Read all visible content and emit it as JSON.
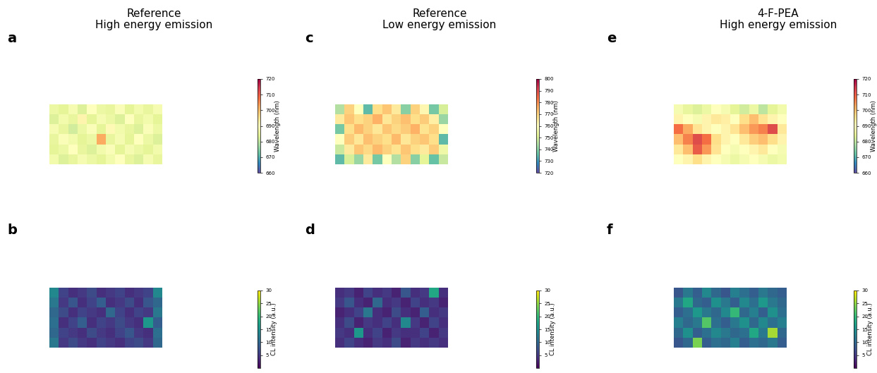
{
  "chart_data": [
    {
      "type": "heatmap",
      "label": "a",
      "title": "Reference\nHigh energy emission",
      "color": "Spectral_r",
      "colorbar_label": "Wavelength (nm)",
      "colorbar_range": [
        660,
        720
      ],
      "colorbar_ticks": [
        660,
        670,
        680,
        690,
        700,
        710,
        720
      ],
      "cells": [
        [
          686,
          684,
          688,
          683,
          690,
          686,
          685,
          689,
          684,
          687,
          685,
          688
        ],
        [
          683,
          687,
          685,
          692,
          684,
          688,
          686,
          683,
          690,
          685,
          687,
          684
        ],
        [
          688,
          685,
          682,
          686,
          689,
          684,
          691,
          687,
          685,
          683,
          689,
          686
        ],
        [
          685,
          689,
          687,
          684,
          686,
          702,
          685,
          688,
          684,
          690,
          686,
          683
        ],
        [
          684,
          686,
          690,
          685,
          683,
          687,
          689,
          684,
          688,
          686,
          684,
          687
        ],
        [
          687,
          683,
          685,
          688,
          686,
          684,
          687,
          690,
          685,
          683,
          688,
          685
        ]
      ]
    },
    {
      "type": "heatmap",
      "label": "c",
      "title": "Reference\nLow energy emission",
      "color": "Spectral_r",
      "colorbar_label": "Wavelength (nm)",
      "colorbar_range": [
        720,
        800
      ],
      "colorbar_ticks": [
        720,
        730,
        740,
        750,
        760,
        770,
        780,
        790,
        800
      ],
      "cells": [
        [
          745,
          770,
          760,
          735,
          768,
          772,
          765,
          740,
          770,
          762,
          738,
          750
        ],
        [
          765,
          772,
          768,
          770,
          775,
          766,
          770,
          773,
          768,
          771,
          764,
          742
        ],
        [
          738,
          768,
          774,
          770,
          766,
          772,
          769,
          771,
          775,
          767,
          770,
          760
        ],
        [
          760,
          771,
          766,
          773,
          770,
          768,
          774,
          766,
          770,
          772,
          768,
          735
        ],
        [
          748,
          765,
          772,
          769,
          774,
          770,
          767,
          772,
          768,
          765,
          771,
          755
        ],
        [
          735,
          750,
          742,
          765,
          738,
          760,
          745,
          770,
          740,
          752,
          736,
          748
        ]
      ]
    },
    {
      "type": "heatmap",
      "label": "e",
      "title": "4-F-PEA\nHigh energy emission",
      "color": "Spectral_r",
      "colorbar_label": "Wavelength (nm)",
      "colorbar_range": [
        660,
        720
      ],
      "colorbar_ticks": [
        660,
        670,
        680,
        690,
        700,
        710,
        720
      ],
      "cells": [
        [
          688,
          685,
          683,
          686,
          690,
          688,
          684,
          682,
          686,
          680,
          684,
          687
        ],
        [
          692,
          690,
          688,
          692,
          694,
          693,
          690,
          696,
          700,
          695,
          692,
          690
        ],
        [
          708,
          702,
          695,
          692,
          690,
          692,
          695,
          700,
          704,
          706,
          712,
          694
        ],
        [
          700,
          706,
          712,
          708,
          696,
          692,
          690,
          694,
          698,
          700,
          696,
          692
        ],
        [
          694,
          700,
          710,
          704,
          695,
          690,
          688,
          690,
          692,
          694,
          690,
          688
        ],
        [
          690,
          692,
          696,
          692,
          690,
          688,
          686,
          688,
          690,
          688,
          686,
          687
        ]
      ]
    },
    {
      "type": "heatmap",
      "label": "b",
      "color": "viridis",
      "colorbar_label": "CL intensity (a.u.)",
      "colorbar_range": [
        0,
        30
      ],
      "colorbar_ticks": [
        5,
        10,
        15,
        20,
        25,
        30
      ],
      "cells": [
        [
          14,
          6,
          4,
          5,
          7,
          4,
          5,
          6,
          4,
          5,
          6,
          14
        ],
        [
          12,
          5,
          8,
          4,
          6,
          9,
          4,
          5,
          7,
          4,
          8,
          10
        ],
        [
          10,
          7,
          4,
          6,
          5,
          4,
          10,
          6,
          4,
          6,
          5,
          12
        ],
        [
          11,
          4,
          6,
          9,
          4,
          6,
          5,
          7,
          5,
          4,
          16,
          9
        ],
        [
          10,
          6,
          5,
          4,
          7,
          5,
          4,
          6,
          8,
          5,
          4,
          11
        ],
        [
          12,
          5,
          7,
          5,
          4,
          6,
          5,
          4,
          6,
          7,
          5,
          10
        ]
      ]
    },
    {
      "type": "heatmap",
      "label": "d",
      "color": "viridis",
      "colorbar_label": "CL intensity (a.u.)",
      "colorbar_range": [
        0,
        30
      ],
      "colorbar_ticks": [
        5,
        10,
        15,
        20,
        25,
        30
      ],
      "cells": [
        [
          4,
          5,
          3,
          6,
          4,
          5,
          3,
          8,
          4,
          5,
          18,
          4
        ],
        [
          5,
          8,
          4,
          3,
          10,
          4,
          5,
          3,
          6,
          4,
          5,
          3
        ],
        [
          3,
          4,
          6,
          12,
          4,
          3,
          7,
          4,
          3,
          9,
          4,
          5
        ],
        [
          4,
          7,
          3,
          5,
          4,
          6,
          4,
          14,
          5,
          3,
          6,
          4
        ],
        [
          5,
          4,
          16,
          4,
          6,
          3,
          5,
          4,
          4,
          6,
          3,
          5
        ],
        [
          4,
          6,
          4,
          3,
          5,
          4,
          7,
          3,
          5,
          4,
          5,
          4
        ]
      ]
    },
    {
      "type": "heatmap",
      "label": "f",
      "color": "viridis",
      "colorbar_label": "CL intensity (a.u.)",
      "colorbar_range": [
        0,
        30
      ],
      "colorbar_ticks": [
        5,
        10,
        15,
        20,
        25,
        30
      ],
      "cells": [
        [
          8,
          12,
          9,
          14,
          10,
          8,
          13,
          11,
          9,
          12,
          10,
          9
        ],
        [
          12,
          18,
          10,
          9,
          15,
          12,
          9,
          14,
          11,
          16,
          12,
          10
        ],
        [
          9,
          11,
          16,
          12,
          10,
          14,
          20,
          10,
          13,
          9,
          15,
          11
        ],
        [
          13,
          10,
          12,
          22,
          11,
          9,
          12,
          15,
          10,
          14,
          11,
          13
        ],
        [
          10,
          15,
          9,
          11,
          14,
          12,
          10,
          11,
          18,
          12,
          26,
          10
        ],
        [
          8,
          10,
          24,
          9,
          11,
          10,
          13,
          9,
          11,
          10,
          12,
          9
        ]
      ]
    }
  ]
}
